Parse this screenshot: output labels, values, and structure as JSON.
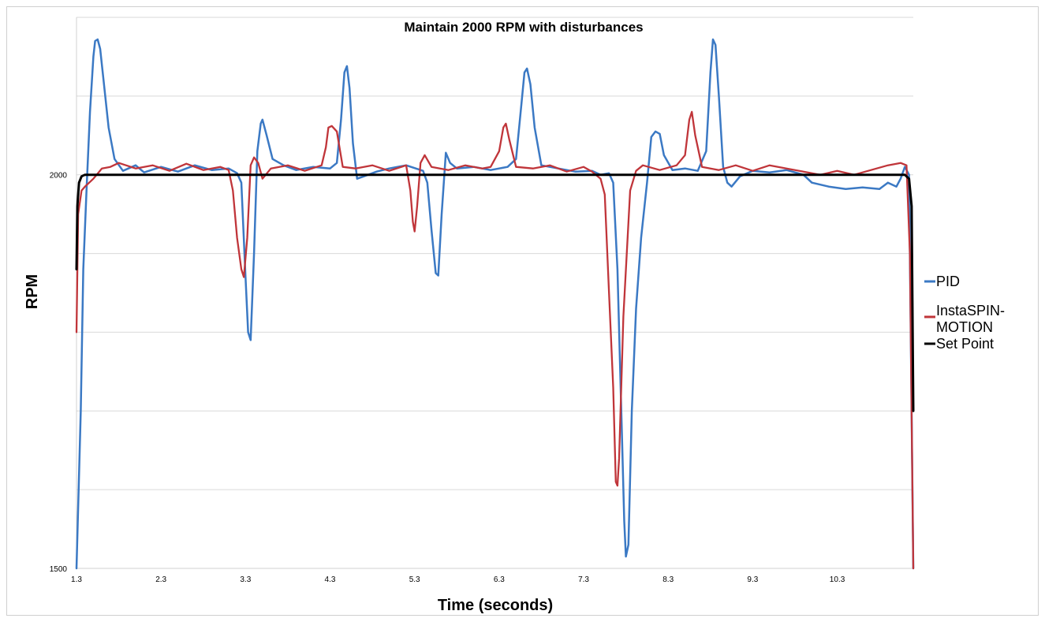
{
  "chart_data": {
    "type": "line",
    "title": "Maintain 2000 RPM with disturbances",
    "xlabel": "Time (seconds)",
    "ylabel": "RPM",
    "xlim": [
      1.3,
      11.2
    ],
    "ylim": [
      1500,
      2200
    ],
    "x_tick_labels": [
      "1.3",
      "2.3",
      "3.3",
      "4.3",
      "5.3",
      "6.3",
      "7.3",
      "8.3",
      "9.3",
      "10.3"
    ],
    "x_ticks": [
      1.3,
      2.3,
      3.3,
      4.3,
      5.3,
      6.3,
      7.3,
      8.3,
      9.3,
      10.3
    ],
    "y_tick_labels": [
      "2000",
      "1500"
    ],
    "y_ticks": [
      2000,
      1500
    ],
    "grid": true,
    "legend_position": "right",
    "series": [
      {
        "name": "PID",
        "color": "#3b79c4",
        "points": [
          [
            1.3,
            1500
          ],
          [
            1.35,
            1700
          ],
          [
            1.38,
            1880
          ],
          [
            1.42,
            1985
          ],
          [
            1.46,
            2080
          ],
          [
            1.5,
            2150
          ],
          [
            1.52,
            2170
          ],
          [
            1.55,
            2172
          ],
          [
            1.58,
            2160
          ],
          [
            1.62,
            2120
          ],
          [
            1.68,
            2060
          ],
          [
            1.75,
            2020
          ],
          [
            1.85,
            2005
          ],
          [
            2.0,
            2012
          ],
          [
            2.1,
            2003
          ],
          [
            2.3,
            2010
          ],
          [
            2.5,
            2004
          ],
          [
            2.7,
            2012
          ],
          [
            2.9,
            2006
          ],
          [
            3.1,
            2008
          ],
          [
            3.2,
            2002
          ],
          [
            3.25,
            1990
          ],
          [
            3.3,
            1870
          ],
          [
            3.33,
            1800
          ],
          [
            3.36,
            1790
          ],
          [
            3.4,
            1900
          ],
          [
            3.44,
            2030
          ],
          [
            3.48,
            2065
          ],
          [
            3.5,
            2070
          ],
          [
            3.55,
            2050
          ],
          [
            3.62,
            2020
          ],
          [
            3.75,
            2012
          ],
          [
            3.9,
            2006
          ],
          [
            4.1,
            2010
          ],
          [
            4.3,
            2008
          ],
          [
            4.38,
            2015
          ],
          [
            4.43,
            2070
          ],
          [
            4.47,
            2130
          ],
          [
            4.5,
            2138
          ],
          [
            4.53,
            2110
          ],
          [
            4.57,
            2040
          ],
          [
            4.62,
            1995
          ],
          [
            4.7,
            1998
          ],
          [
            4.85,
            2004
          ],
          [
            5.0,
            2008
          ],
          [
            5.2,
            2012
          ],
          [
            5.4,
            2005
          ],
          [
            5.45,
            1990
          ],
          [
            5.5,
            1930
          ],
          [
            5.55,
            1875
          ],
          [
            5.58,
            1872
          ],
          [
            5.62,
            1950
          ],
          [
            5.67,
            2028
          ],
          [
            5.72,
            2015
          ],
          [
            5.8,
            2008
          ],
          [
            6.0,
            2010
          ],
          [
            6.2,
            2006
          ],
          [
            6.4,
            2010
          ],
          [
            6.5,
            2020
          ],
          [
            6.55,
            2075
          ],
          [
            6.6,
            2130
          ],
          [
            6.63,
            2135
          ],
          [
            6.67,
            2115
          ],
          [
            6.72,
            2060
          ],
          [
            6.8,
            2012
          ],
          [
            7.0,
            2008
          ],
          [
            7.2,
            2004
          ],
          [
            7.4,
            2005
          ],
          [
            7.5,
            2000
          ],
          [
            7.6,
            2002
          ],
          [
            7.65,
            1990
          ],
          [
            7.7,
            1880
          ],
          [
            7.75,
            1680
          ],
          [
            7.78,
            1560
          ],
          [
            7.8,
            1515
          ],
          [
            7.83,
            1530
          ],
          [
            7.87,
            1700
          ],
          [
            7.92,
            1830
          ],
          [
            7.98,
            1920
          ],
          [
            8.05,
            1990
          ],
          [
            8.1,
            2048
          ],
          [
            8.15,
            2055
          ],
          [
            8.2,
            2052
          ],
          [
            8.25,
            2025
          ],
          [
            8.35,
            2006
          ],
          [
            8.5,
            2008
          ],
          [
            8.65,
            2005
          ],
          [
            8.75,
            2030
          ],
          [
            8.8,
            2130
          ],
          [
            8.83,
            2172
          ],
          [
            8.86,
            2165
          ],
          [
            8.9,
            2100
          ],
          [
            8.95,
            2010
          ],
          [
            9.0,
            1990
          ],
          [
            9.05,
            1985
          ],
          [
            9.15,
            1998
          ],
          [
            9.3,
            2005
          ],
          [
            9.5,
            2003
          ],
          [
            9.7,
            2006
          ],
          [
            9.9,
            2000
          ],
          [
            10.0,
            1990
          ],
          [
            10.2,
            1985
          ],
          [
            10.4,
            1982
          ],
          [
            10.6,
            1984
          ],
          [
            10.8,
            1982
          ],
          [
            10.9,
            1990
          ],
          [
            11.0,
            1985
          ],
          [
            11.05,
            1995
          ],
          [
            11.1,
            2010
          ],
          [
            11.15,
            2000
          ],
          [
            11.2,
            1500
          ]
        ]
      },
      {
        "name": "InstaSPIN-MOTION",
        "color": "#c0353a",
        "points": [
          [
            1.3,
            1800
          ],
          [
            1.32,
            1950
          ],
          [
            1.36,
            1980
          ],
          [
            1.4,
            1985
          ],
          [
            1.45,
            1990
          ],
          [
            1.5,
            1995
          ],
          [
            1.6,
            2008
          ],
          [
            1.7,
            2010
          ],
          [
            1.8,
            2015
          ],
          [
            2.0,
            2008
          ],
          [
            2.2,
            2012
          ],
          [
            2.4,
            2005
          ],
          [
            2.6,
            2014
          ],
          [
            2.8,
            2006
          ],
          [
            3.0,
            2010
          ],
          [
            3.1,
            2006
          ],
          [
            3.15,
            1980
          ],
          [
            3.2,
            1920
          ],
          [
            3.25,
            1880
          ],
          [
            3.28,
            1870
          ],
          [
            3.32,
            1920
          ],
          [
            3.36,
            2012
          ],
          [
            3.4,
            2022
          ],
          [
            3.45,
            2015
          ],
          [
            3.5,
            1995
          ],
          [
            3.6,
            2008
          ],
          [
            3.8,
            2012
          ],
          [
            4.0,
            2005
          ],
          [
            4.2,
            2012
          ],
          [
            4.25,
            2035
          ],
          [
            4.28,
            2060
          ],
          [
            4.32,
            2062
          ],
          [
            4.38,
            2055
          ],
          [
            4.45,
            2010
          ],
          [
            4.6,
            2008
          ],
          [
            4.8,
            2012
          ],
          [
            5.0,
            2005
          ],
          [
            5.2,
            2012
          ],
          [
            5.25,
            1980
          ],
          [
            5.28,
            1940
          ],
          [
            5.3,
            1928
          ],
          [
            5.33,
            1960
          ],
          [
            5.37,
            2015
          ],
          [
            5.42,
            2025
          ],
          [
            5.5,
            2010
          ],
          [
            5.7,
            2006
          ],
          [
            5.9,
            2012
          ],
          [
            6.1,
            2008
          ],
          [
            6.2,
            2010
          ],
          [
            6.3,
            2030
          ],
          [
            6.35,
            2060
          ],
          [
            6.38,
            2065
          ],
          [
            6.42,
            2045
          ],
          [
            6.5,
            2010
          ],
          [
            6.7,
            2008
          ],
          [
            6.9,
            2012
          ],
          [
            7.1,
            2004
          ],
          [
            7.3,
            2010
          ],
          [
            7.4,
            2004
          ],
          [
            7.5,
            1995
          ],
          [
            7.55,
            1975
          ],
          [
            7.6,
            1850
          ],
          [
            7.65,
            1730
          ],
          [
            7.68,
            1610
          ],
          [
            7.7,
            1605
          ],
          [
            7.72,
            1640
          ],
          [
            7.77,
            1820
          ],
          [
            7.85,
            1980
          ],
          [
            7.92,
            2005
          ],
          [
            8.0,
            2012
          ],
          [
            8.2,
            2006
          ],
          [
            8.4,
            2012
          ],
          [
            8.5,
            2025
          ],
          [
            8.55,
            2070
          ],
          [
            8.58,
            2080
          ],
          [
            8.62,
            2050
          ],
          [
            8.7,
            2010
          ],
          [
            8.9,
            2006
          ],
          [
            9.1,
            2012
          ],
          [
            9.3,
            2005
          ],
          [
            9.5,
            2012
          ],
          [
            9.7,
            2008
          ],
          [
            9.9,
            2004
          ],
          [
            10.1,
            2000
          ],
          [
            10.3,
            2005
          ],
          [
            10.5,
            2000
          ],
          [
            10.7,
            2006
          ],
          [
            10.9,
            2012
          ],
          [
            11.0,
            2014
          ],
          [
            11.05,
            2015
          ],
          [
            11.12,
            2012
          ],
          [
            11.16,
            1900
          ],
          [
            11.2,
            1500
          ]
        ]
      },
      {
        "name": "Set Point",
        "color": "#000000",
        "points": [
          [
            1.3,
            1880
          ],
          [
            1.31,
            1960
          ],
          [
            1.33,
            1990
          ],
          [
            1.36,
            1998
          ],
          [
            1.4,
            2000
          ],
          [
            11.1,
            2000
          ],
          [
            11.15,
            1995
          ],
          [
            11.18,
            1960
          ],
          [
            11.2,
            1700
          ]
        ]
      }
    ]
  }
}
